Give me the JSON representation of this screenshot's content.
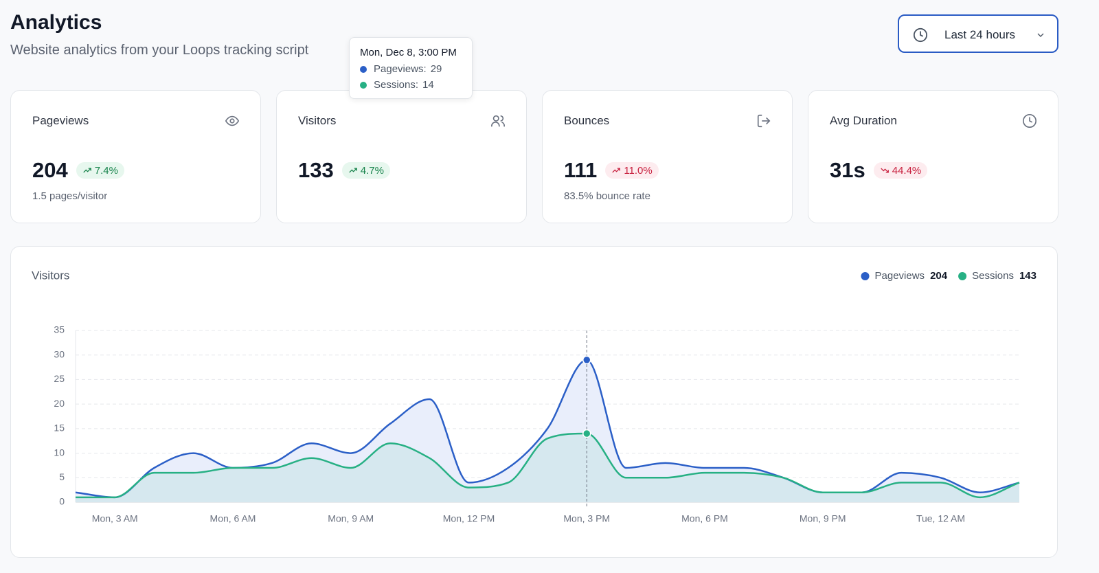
{
  "header": {
    "title": "Analytics",
    "subtitle": "Website analytics from your Loops tracking script",
    "range": "Last 24 hours"
  },
  "cards": [
    {
      "label": "Pageviews",
      "value": "204",
      "change": "7.4%",
      "trend": "up",
      "tone": "positive",
      "note": "1.5 pages/visitor"
    },
    {
      "label": "Visitors",
      "value": "133",
      "change": "4.7%",
      "trend": "up",
      "tone": "positive"
    },
    {
      "label": "Bounces",
      "value": "111",
      "change": "11.0%",
      "trend": "up",
      "tone": "negative",
      "note": "83.5% bounce rate"
    },
    {
      "label": "Avg Duration",
      "value": "31s",
      "change": "44.4%",
      "trend": "down",
      "tone": "negative"
    }
  ],
  "tooltip": {
    "title": "Mon, Dec 8, 3:00 PM",
    "rows": [
      {
        "label": "Pageviews:"
      },
      {
        "label": "Sessions:"
      }
    ]
  },
  "chart_data": {
    "type": "line",
    "title": "Visitors",
    "categories": [
      null,
      "Mon, 3 AM",
      null,
      null,
      "Mon, 6 AM",
      null,
      null,
      "Mon, 9 AM",
      null,
      null,
      "Mon, 12 PM",
      null,
      null,
      "Mon, 3 PM",
      null,
      null,
      "Mon, 6 PM",
      null,
      null,
      "Mon, 9 PM",
      null,
      null,
      "Tue, 12 AM",
      null,
      null
    ],
    "series": [
      {
        "name": "Pageviews",
        "total": 204,
        "color": "#2b5fc7",
        "area_color": "#e9eefb",
        "values": [
          2,
          1,
          7,
          10,
          7,
          8,
          12,
          10,
          16,
          21,
          4,
          7,
          15,
          29,
          7,
          8,
          7,
          7,
          5,
          2,
          2,
          6,
          5,
          2,
          4
        ]
      },
      {
        "name": "Sessions",
        "total": 143,
        "color": "#27b084",
        "area_color": "#d6e8ef",
        "values": [
          1,
          1,
          6,
          6,
          7,
          7,
          9,
          7,
          12,
          9,
          3,
          4,
          13,
          14,
          5,
          5,
          6,
          6,
          5,
          2,
          2,
          4,
          4,
          1,
          4
        ]
      }
    ],
    "ylim": [
      0,
      35
    ],
    "yticks": [
      0,
      5,
      10,
      15,
      20,
      25,
      30,
      35
    ],
    "grid": true
  }
}
